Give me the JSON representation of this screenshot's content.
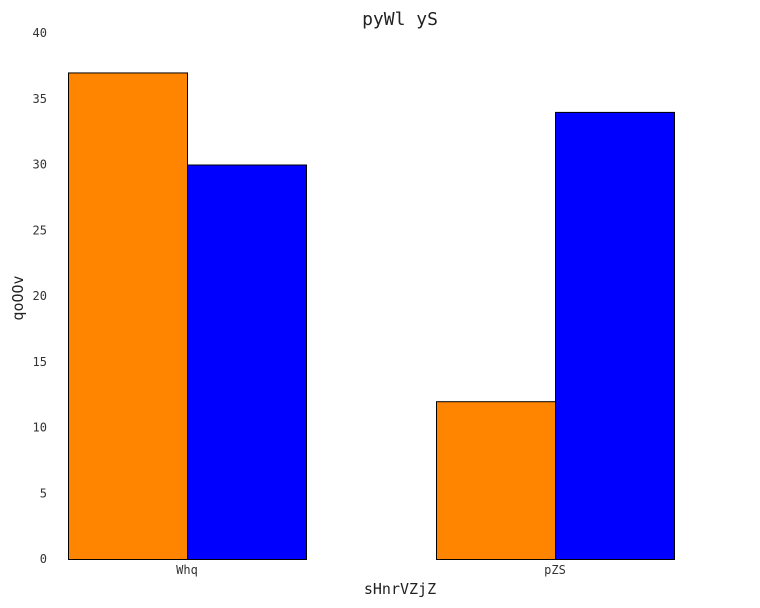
{
  "chart_data": {
    "type": "bar",
    "title": "pyWl yS",
    "xlabel": "sHnrVZjZ",
    "ylabel": "qoOOv",
    "categories": [
      "Whq",
      "pZS"
    ],
    "series": [
      {
        "color": "#FF8500",
        "values": [
          37,
          12
        ]
      },
      {
        "color": "#0000FF",
        "values": [
          30,
          34
        ]
      }
    ],
    "ylim": [
      0,
      40
    ],
    "yticks": [
      0,
      5,
      10,
      15,
      20,
      25,
      30,
      35,
      40
    ],
    "grid": false,
    "legend": "none"
  }
}
